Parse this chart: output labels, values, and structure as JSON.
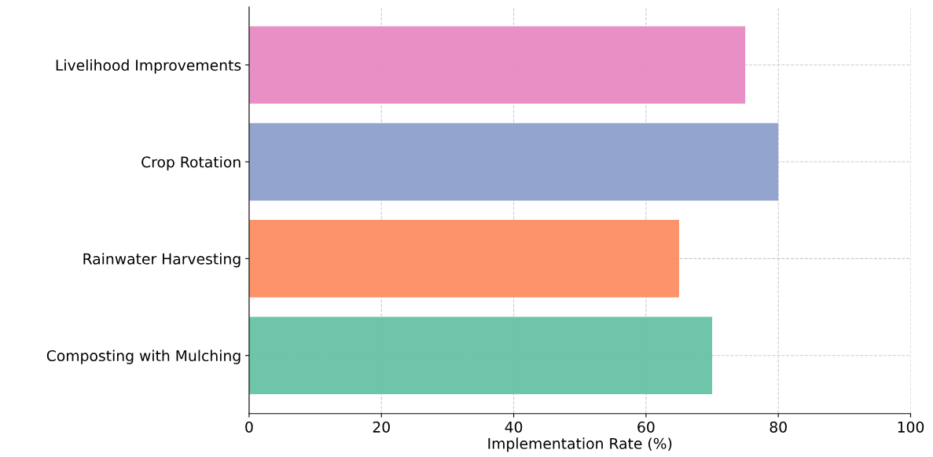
{
  "chart_data": {
    "type": "bar",
    "orientation": "horizontal",
    "xlabel": "Implementation Rate (%)",
    "categories": [
      "Livelihood Improvements",
      "Crop Rotation",
      "Rainwater Harvesting",
      "Composting with Mulching"
    ],
    "values": [
      75,
      80,
      65,
      70
    ],
    "colors": [
      "#e78ac3",
      "#8da0cb",
      "#fc8d62",
      "#66c2a5"
    ],
    "xlim": [
      0,
      100
    ],
    "xticks": [
      0,
      20,
      40,
      60,
      80,
      100
    ],
    "grid": true
  }
}
